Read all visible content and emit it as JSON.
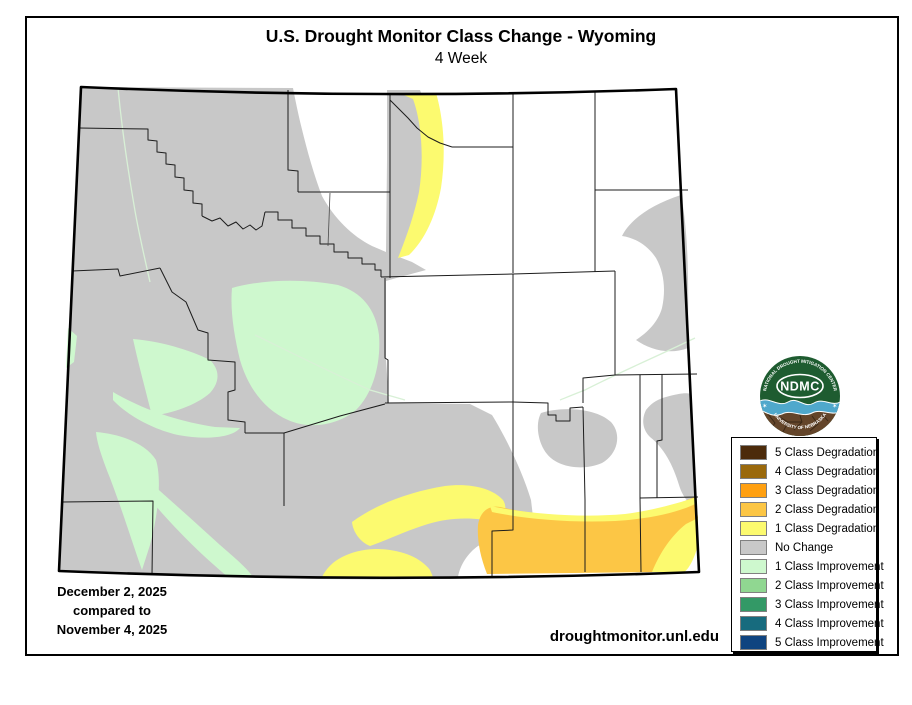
{
  "title": "U.S. Drought Monitor Class Change - Wyoming",
  "subtitle": "4 Week",
  "dates": {
    "current": "December 2, 2025",
    "connector": "compared to",
    "previous": "November 4, 2025"
  },
  "website": "droughtmonitor.unl.edu",
  "logo": {
    "acronym": "NDMC",
    "top_text": "NATIONAL DROUGHT MITIGATION CENTER",
    "bottom_text": "UNIVERSITY OF NEBRASKA",
    "star_left": "✶",
    "star_right": "✶"
  },
  "colors": {
    "degradation_5": "#4C2B0B",
    "degradation_4": "#9A690C",
    "degradation_3": "#FFA011",
    "degradation_2": "#FCC645",
    "degradation_1": "#FCFA6F",
    "no_change": "#C8C8C8",
    "improvement_1": "#CEF8CE",
    "improvement_2": "#90D791",
    "improvement_3": "#339966",
    "improvement_4": "#176B7E",
    "improvement_5": "#0F4480",
    "river": "#D8F0D6",
    "logo_green": "#1E5C30",
    "logo_brown": "#64452A",
    "logo_blue": "#4FA8CC"
  },
  "legend": {
    "items": [
      {
        "label": "5 Class Degradation",
        "color": "#4C2B0B"
      },
      {
        "label": "4 Class Degradation",
        "color": "#9A690C"
      },
      {
        "label": "3 Class Degradation",
        "color": "#FFA011"
      },
      {
        "label": "2 Class Degradation",
        "color": "#FCC645"
      },
      {
        "label": "1 Class Degradation",
        "color": "#FCFA6F"
      },
      {
        "label": "No Change",
        "color": "#C8C8C8"
      },
      {
        "label": "1 Class Improvement",
        "color": "#CEF8CE"
      },
      {
        "label": "2 Class Improvement",
        "color": "#90D791"
      },
      {
        "label": "3 Class Improvement",
        "color": "#339966"
      },
      {
        "label": "4 Class Improvement",
        "color": "#176B7E"
      },
      {
        "label": "5 Class Improvement",
        "color": "#0F4480"
      }
    ]
  }
}
